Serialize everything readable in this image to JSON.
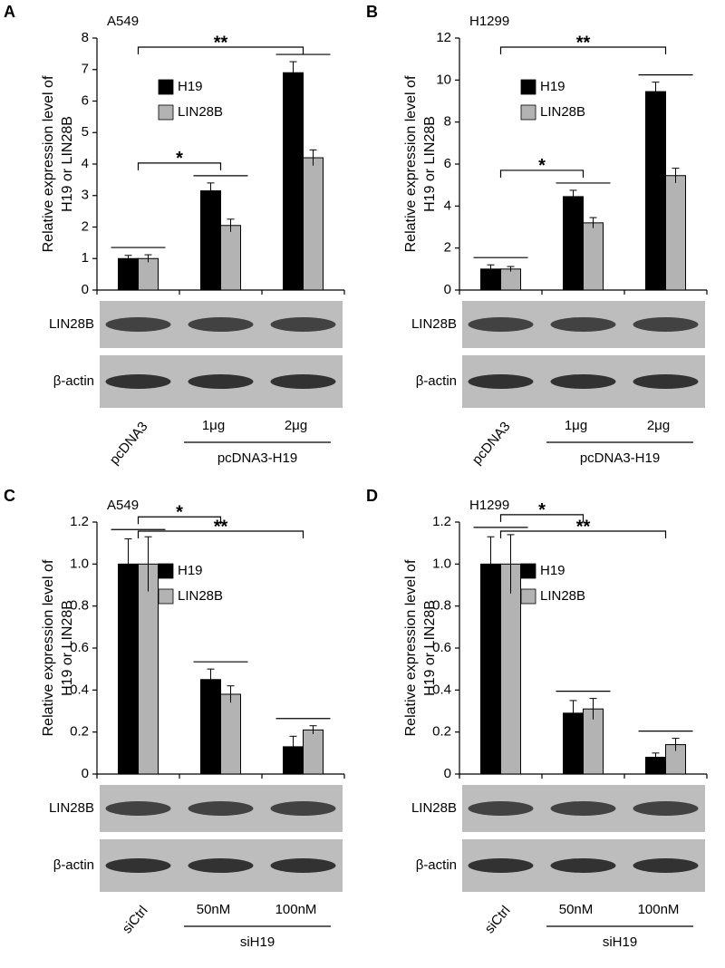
{
  "chart_data": [
    {
      "type": "bar",
      "panel_label": "A",
      "title": "A549",
      "y_label": [
        "Relative expression level of",
        "H19 or LIN28B"
      ],
      "categories": [
        "pcDNA3",
        "1μg",
        "2μg"
      ],
      "group_label": "pcDNA3-H19",
      "blot_labels": [
        "LIN28B",
        "β-actin"
      ],
      "annotations": [
        "*",
        "**"
      ],
      "series": [
        {
          "name": "H19",
          "color": "#000000",
          "values": [
            1.0,
            3.15,
            6.9
          ],
          "errors": [
            0.1,
            0.25,
            0.35
          ]
        },
        {
          "name": "LIN28B",
          "color": "#b3b3b3",
          "values": [
            1.0,
            2.05,
            4.2
          ],
          "errors": [
            0.12,
            0.2,
            0.25
          ]
        }
      ],
      "ylim": [
        0,
        8
      ],
      "yticks": [
        0,
        1,
        2,
        3,
        4,
        5,
        6,
        7,
        8
      ]
    },
    {
      "type": "bar",
      "panel_label": "B",
      "title": "H1299",
      "y_label": [
        "Relative expression level of",
        "H19 or LIN28B"
      ],
      "categories": [
        "pcDNA3",
        "1μg",
        "2μg"
      ],
      "group_label": "pcDNA3-H19",
      "blot_labels": [
        "LIN28B",
        "β-actin"
      ],
      "annotations": [
        "*",
        "**"
      ],
      "series": [
        {
          "name": "H19",
          "color": "#000000",
          "values": [
            1.0,
            4.45,
            9.45
          ],
          "errors": [
            0.2,
            0.3,
            0.45
          ]
        },
        {
          "name": "LIN28B",
          "color": "#b3b3b3",
          "values": [
            1.0,
            3.2,
            5.45
          ],
          "errors": [
            0.12,
            0.25,
            0.35
          ]
        }
      ],
      "ylim": [
        0,
        12
      ],
      "yticks": [
        0,
        2,
        4,
        6,
        8,
        10,
        12
      ]
    },
    {
      "type": "bar",
      "panel_label": "C",
      "title": "A549",
      "y_label": [
        "Relative expression level of",
        "H19 or LIN28B"
      ],
      "categories": [
        "siCtrl",
        "50nM",
        "100nM"
      ],
      "group_label": "siH19",
      "blot_labels": [
        "LIN28B",
        "β-actin"
      ],
      "annotations": [
        "*",
        "**"
      ],
      "series": [
        {
          "name": "H19",
          "color": "#000000",
          "values": [
            1.0,
            0.45,
            0.13
          ],
          "errors": [
            0.12,
            0.05,
            0.05
          ]
        },
        {
          "name": "LIN28B",
          "color": "#b3b3b3",
          "values": [
            1.0,
            0.38,
            0.21
          ],
          "errors": [
            0.13,
            0.04,
            0.02
          ]
        }
      ],
      "ylim": [
        0,
        1.2
      ],
      "yticks": [
        0,
        0.2,
        0.4,
        0.6,
        0.8,
        {
          "value": 1,
          "label": "1.0"
        },
        1.2
      ]
    },
    {
      "type": "bar",
      "panel_label": "D",
      "title": "H1299",
      "y_label": [
        "Relative expression level of",
        "H19 or LIN28B"
      ],
      "categories": [
        "siCtrl",
        "50nM",
        "100nM"
      ],
      "group_label": "siH19",
      "blot_labels": [
        "LIN28B",
        "β-actin"
      ],
      "annotations": [
        "*",
        "**"
      ],
      "series": [
        {
          "name": "H19",
          "color": "#000000",
          "values": [
            1.0,
            0.29,
            0.08
          ],
          "errors": [
            0.13,
            0.06,
            0.02
          ]
        },
        {
          "name": "LIN28B",
          "color": "#b3b3b3",
          "values": [
            1.0,
            0.31,
            0.14
          ],
          "errors": [
            0.14,
            0.05,
            0.03
          ]
        }
      ],
      "ylim": [
        0,
        1.2
      ],
      "yticks": [
        0,
        0.2,
        0.4,
        0.6,
        0.8,
        {
          "value": 1,
          "label": "1.0"
        },
        1.2
      ]
    }
  ]
}
